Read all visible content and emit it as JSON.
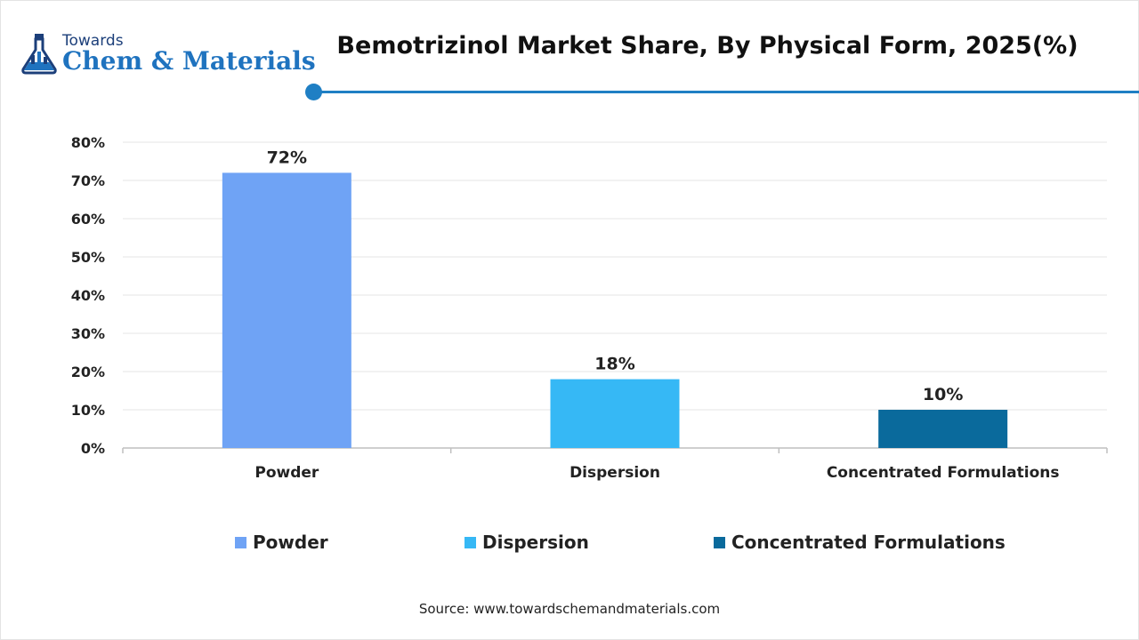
{
  "brand": {
    "line1": "Towards",
    "line2": "Chem & Materials",
    "colors": {
      "dark": "#1c3f7a",
      "blue": "#1f73bf"
    }
  },
  "chart_data": {
    "type": "bar",
    "title": "Bemotrizinol Market Share, By Physical Form, 2025(%)",
    "xlabel": "",
    "ylabel": "",
    "categories": [
      "Powder",
      "Dispersion",
      "Concentrated Formulations"
    ],
    "values": [
      72,
      18,
      10
    ],
    "data_labels": [
      "72%",
      "18%",
      "10%"
    ],
    "colors": [
      "#6fa3f5",
      "#36b8f5",
      "#0a6a9c"
    ],
    "ylim": [
      0,
      80
    ],
    "yticks": [
      0,
      10,
      20,
      30,
      40,
      50,
      60,
      70,
      80
    ],
    "ytick_labels": [
      "0%",
      "10%",
      "20%",
      "30%",
      "40%",
      "50%",
      "60%",
      "70%",
      "80%"
    ],
    "grid": true,
    "legend_position": "bottom",
    "legend": [
      {
        "label": "Powder",
        "color": "#6fa3f5"
      },
      {
        "label": "Dispersion",
        "color": "#36b8f5"
      },
      {
        "label": "Concentrated Formulations",
        "color": "#0a6a9c"
      }
    ]
  },
  "accent_color": "#1f7fc4",
  "source_text": "Source: www.towardschemandmaterials.com"
}
